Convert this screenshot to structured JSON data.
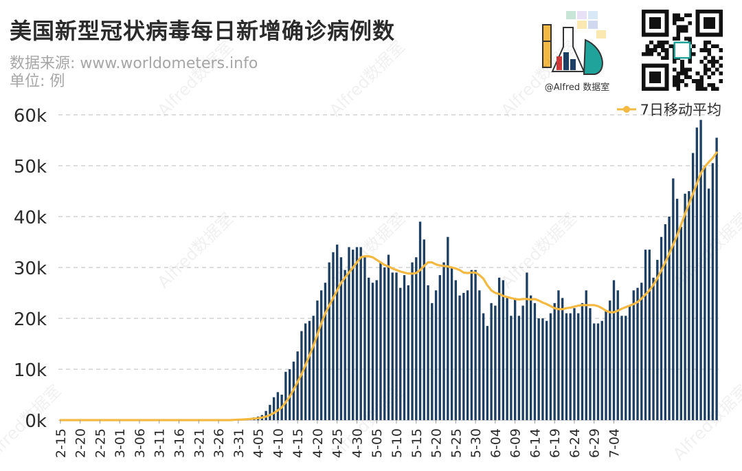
{
  "header": {
    "title": "美国新型冠状病毒每日新增确诊病例数",
    "source": "数据来源: www.worldometers.info",
    "unit": "单位: 例"
  },
  "branding": {
    "logo_caption": "@Alfred 数据室",
    "watermark": "Alfred数据室"
  },
  "colors": {
    "bar": "#1d3f63",
    "line": "#f4b942",
    "grid": "#c8c8c8",
    "axis_text": "#2b2b2b"
  },
  "chart_data": {
    "type": "bar",
    "title": "美国新型冠状病毒每日新增确诊病例数",
    "xlabel": "",
    "ylabel": "",
    "ylim": [
      0,
      60000
    ],
    "y_ticks": [
      "0k",
      "10k",
      "20k",
      "30k",
      "40k",
      "50k",
      "60k"
    ],
    "grid": true,
    "legend_position": "top-right",
    "x_tick_labels": [
      "2-15",
      "2-20",
      "2-25",
      "3-01",
      "3-06",
      "3-11",
      "3-16",
      "3-21",
      "3-26",
      "3-31",
      "4-05",
      "4-10",
      "4-15",
      "4-20",
      "4-25",
      "4-30",
      "5-05",
      "5-10",
      "5-15",
      "5-20",
      "5-25",
      "5-30",
      "6-04",
      "6-09",
      "6-14",
      "6-19",
      "6-24",
      "6-29",
      "7-04"
    ],
    "x_tick_every": 5,
    "start_label": "2-15",
    "series": [
      {
        "type": "bar",
        "values": [
          0,
          0,
          0,
          0,
          0,
          0,
          0,
          0,
          0,
          0,
          0,
          0,
          0,
          0,
          0,
          0,
          0,
          0,
          0,
          0,
          0,
          0,
          0,
          0,
          0,
          0,
          0,
          0,
          0,
          0,
          0,
          0,
          0,
          0,
          0,
          0,
          0,
          0,
          0,
          0,
          0,
          0,
          0,
          0,
          100,
          150,
          200,
          300,
          400,
          550,
          700,
          1000,
          1800,
          3000,
          4500,
          5500,
          5000,
          9500,
          10000,
          11500,
          13500,
          17500,
          19000,
          19500,
          20500,
          23500,
          25500,
          27000,
          31000,
          33000,
          34500,
          32000,
          29500,
          34000,
          33500,
          34000,
          34000,
          32000,
          28000,
          27000,
          27500,
          31000,
          30000,
          32500,
          29000,
          29000,
          26000,
          28500,
          26500,
          31000,
          32000,
          39000,
          35500,
          26500,
          23000,
          25500,
          28500,
          31000,
          36000,
          30000,
          27500,
          24500,
          25000,
          25500,
          29500,
          29500,
          25500,
          21000,
          18500,
          23000,
          22500,
          28000,
          27500,
          24000,
          20500,
          24000,
          20500,
          22500,
          29000,
          24500,
          23000,
          20000,
          20000,
          19500,
          21000,
          23000,
          25500,
          24000,
          21000,
          21000,
          22000,
          21000,
          23000,
          25500,
          22000,
          19000,
          19000,
          19500,
          21500,
          23500,
          27500,
          25500,
          20500,
          20500,
          22500,
          25500,
          26000,
          27000,
          33500,
          33500,
          28000,
          31500,
          36000,
          38500,
          40000,
          47500,
          43500,
          38000,
          44500,
          45000,
          52500,
          57500,
          59000,
          50000,
          45500,
          50500,
          55500
        ]
      },
      {
        "type": "line",
        "name": "7日移动平均",
        "values": [
          0,
          0,
          0,
          0,
          0,
          0,
          0,
          0,
          0,
          0,
          0,
          0,
          0,
          0,
          0,
          0,
          0,
          0,
          0,
          0,
          0,
          0,
          0,
          0,
          0,
          0,
          0,
          0,
          0,
          0,
          0,
          0,
          0,
          0,
          0,
          0,
          0,
          0,
          0,
          0,
          0,
          0,
          0,
          0,
          60,
          90,
          120,
          170,
          230,
          300,
          380,
          500,
          700,
          1000,
          1400,
          1900,
          2500,
          3500,
          4600,
          6000,
          7500,
          9000,
          10800,
          12700,
          14600,
          16800,
          19000,
          21000,
          22500,
          24000,
          25500,
          27000,
          28000,
          29000,
          30000,
          31000,
          32000,
          32200,
          32200,
          32000,
          31500,
          31000,
          30500,
          30200,
          29800,
          29500,
          29200,
          29000,
          28800,
          28800,
          28900,
          29500,
          30300,
          31000,
          31000,
          30600,
          30400,
          30300,
          30200,
          30000,
          29800,
          29500,
          29000,
          28900,
          29000,
          29000,
          28500,
          27800,
          26500,
          25500,
          25000,
          24800,
          24400,
          24200,
          24000,
          23800,
          23700,
          23800,
          23800,
          23700,
          23800,
          23500,
          23100,
          22800,
          22400,
          22000,
          21800,
          21800,
          22000,
          22100,
          22300,
          22500,
          22600,
          22600,
          22600,
          22600,
          22400,
          22000,
          21500,
          21200,
          21200,
          21500,
          21900,
          22200,
          22500,
          22800,
          23200,
          23900,
          24700,
          25500,
          26600,
          27900,
          29400,
          31000,
          32700,
          34500,
          36300,
          38400,
          40500,
          42500,
          44500,
          46500,
          48500,
          49800,
          50700,
          51500,
          52600
        ]
      }
    ]
  }
}
